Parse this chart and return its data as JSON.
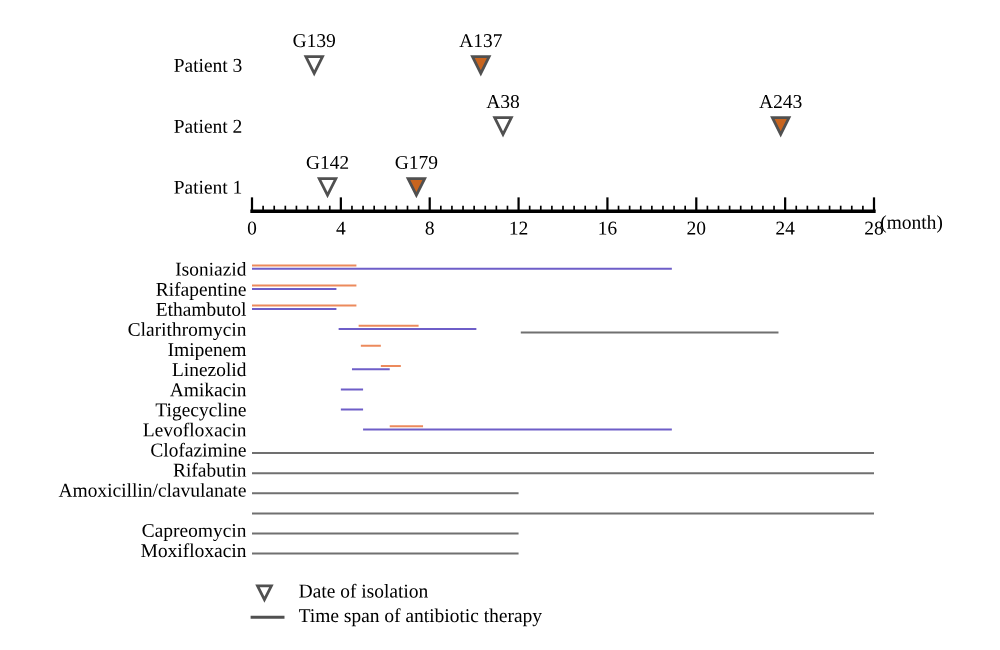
{
  "chart_data": [
    {
      "type": "scatter",
      "orientation": "horizontal",
      "categories": [
        "Patient 3",
        "Patient 2",
        "Patient 1"
      ],
      "xlabel": "(month)",
      "xlim": [
        0,
        28
      ],
      "xticks": [
        0,
        4,
        8,
        12,
        16,
        20,
        24,
        28
      ],
      "marker": "triangle",
      "tick_labels": "xy",
      "series": [
        {
          "color": "#ffffff",
          "values": [
            2.8,
            11.3,
            3.4
          ],
          "value_labels": [
            "G139",
            "A38",
            "G142"
          ]
        },
        {
          "color": "#c8641e",
          "values": [
            10.3,
            23.8,
            7.4
          ],
          "value_labels": [
            "A137",
            "A243",
            "G179"
          ]
        }
      ]
    },
    {
      "type": "bar",
      "orientation": "horizontal",
      "categories": [
        "Isoniazid",
        "Rifapentine",
        "Ethambutol",
        "Clarithromycin",
        "Imipenem",
        "Linezolid",
        "Amikacin",
        "Tigecycline",
        "Levofloxacin",
        "Clofazimine",
        "Rifabutin",
        "Amoxicillin/clavulanate",
        null,
        "Capreomycin",
        "Moxifloxacin"
      ],
      "xlim": [
        0,
        28
      ],
      "tick_labels": "y",
      "annotations": [
        "Date of isolation",
        "Time span of antibiotic therapy"
      ],
      "series": [
        {
          "color": "#ec8a5c",
          "base": [
            0,
            0,
            0,
            4.8,
            4.9,
            5.8,
            null,
            null,
            6.2,
            null,
            null,
            null,
            null,
            null,
            null
          ],
          "values": [
            4.7,
            4.7,
            4.7,
            2.7,
            0.9,
            0.9,
            null,
            null,
            1.5,
            null,
            null,
            null,
            null,
            null,
            null
          ]
        },
        {
          "color": "#6e5ec8",
          "base": [
            0,
            0,
            0,
            3.9,
            null,
            4.5,
            4.0,
            4.0,
            5.0,
            null,
            null,
            null,
            null,
            null,
            null
          ],
          "values": [
            18.9,
            3.8,
            3.8,
            6.2,
            null,
            1.7,
            1.0,
            1.0,
            13.9,
            null,
            null,
            null,
            null,
            null,
            null
          ]
        },
        {
          "color": "#707070",
          "base": [
            null,
            null,
            null,
            12.1,
            null,
            null,
            null,
            null,
            null,
            0,
            0,
            0,
            0,
            0,
            0
          ],
          "values": [
            null,
            null,
            null,
            11.6,
            null,
            null,
            null,
            null,
            null,
            28,
            28,
            12,
            28,
            12,
            12
          ]
        }
      ]
    }
  ]
}
